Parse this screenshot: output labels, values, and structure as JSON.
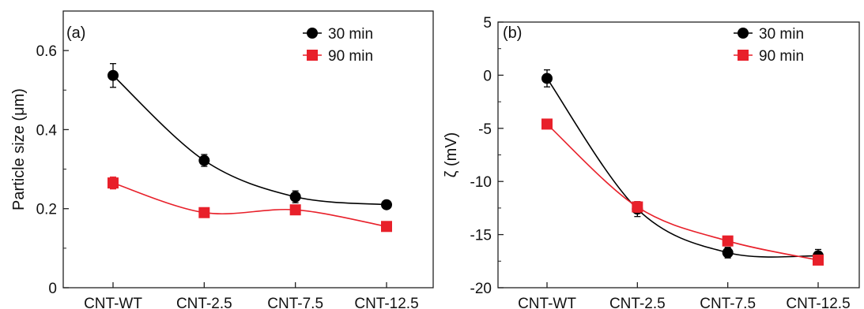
{
  "chart_data": [
    {
      "panel_label": "(a)",
      "type": "line",
      "ylabel": "Particle size (μm)",
      "categories": [
        "CNT-WT",
        "CNT-2.5",
        "CNT-7.5",
        "CNT-12.5"
      ],
      "ylim": [
        0,
        0.7
      ],
      "yticks": [
        0,
        0.2,
        0.4,
        0.6
      ],
      "ytick_labels": [
        "0",
        "0.2",
        "0.4",
        "0.6"
      ],
      "legend_position": "top-right",
      "grid": false,
      "series": [
        {
          "name": "30 min",
          "color": "#000000",
          "marker": "circle",
          "values": [
            0.537,
            0.322,
            0.23,
            0.21
          ],
          "errors": [
            0.03,
            0.015,
            0.015,
            0.008
          ]
        },
        {
          "name": "90 min",
          "color": "#e8202a",
          "marker": "square",
          "values": [
            0.265,
            0.19,
            0.197,
            0.155
          ],
          "errors": [
            0.015,
            0.008,
            0.01,
            0.008
          ]
        }
      ]
    },
    {
      "panel_label": "(b)",
      "type": "line",
      "ylabel": "ζ (mV)",
      "categories": [
        "CNT-WT",
        "CNT-2.5",
        "CNT-7.5",
        "CNT-12.5"
      ],
      "ylim": [
        -20,
        5
      ],
      "yticks": [
        -20,
        -15,
        -10,
        -5,
        0,
        5
      ],
      "ytick_labels": [
        "-20",
        "-15",
        "-10",
        "-5",
        "0",
        "5"
      ],
      "legend_position": "top-right",
      "grid": false,
      "series": [
        {
          "name": "30 min",
          "color": "#000000",
          "marker": "circle",
          "values": [
            -0.3,
            -12.6,
            -16.7,
            -17.0
          ],
          "errors": [
            0.8,
            0.7,
            0.5,
            0.6
          ]
        },
        {
          "name": "90 min",
          "color": "#e8202a",
          "marker": "square",
          "values": [
            -4.6,
            -12.4,
            -15.6,
            -17.4
          ],
          "errors": [
            0.3,
            0.5,
            0.3,
            0.3
          ]
        }
      ]
    }
  ]
}
